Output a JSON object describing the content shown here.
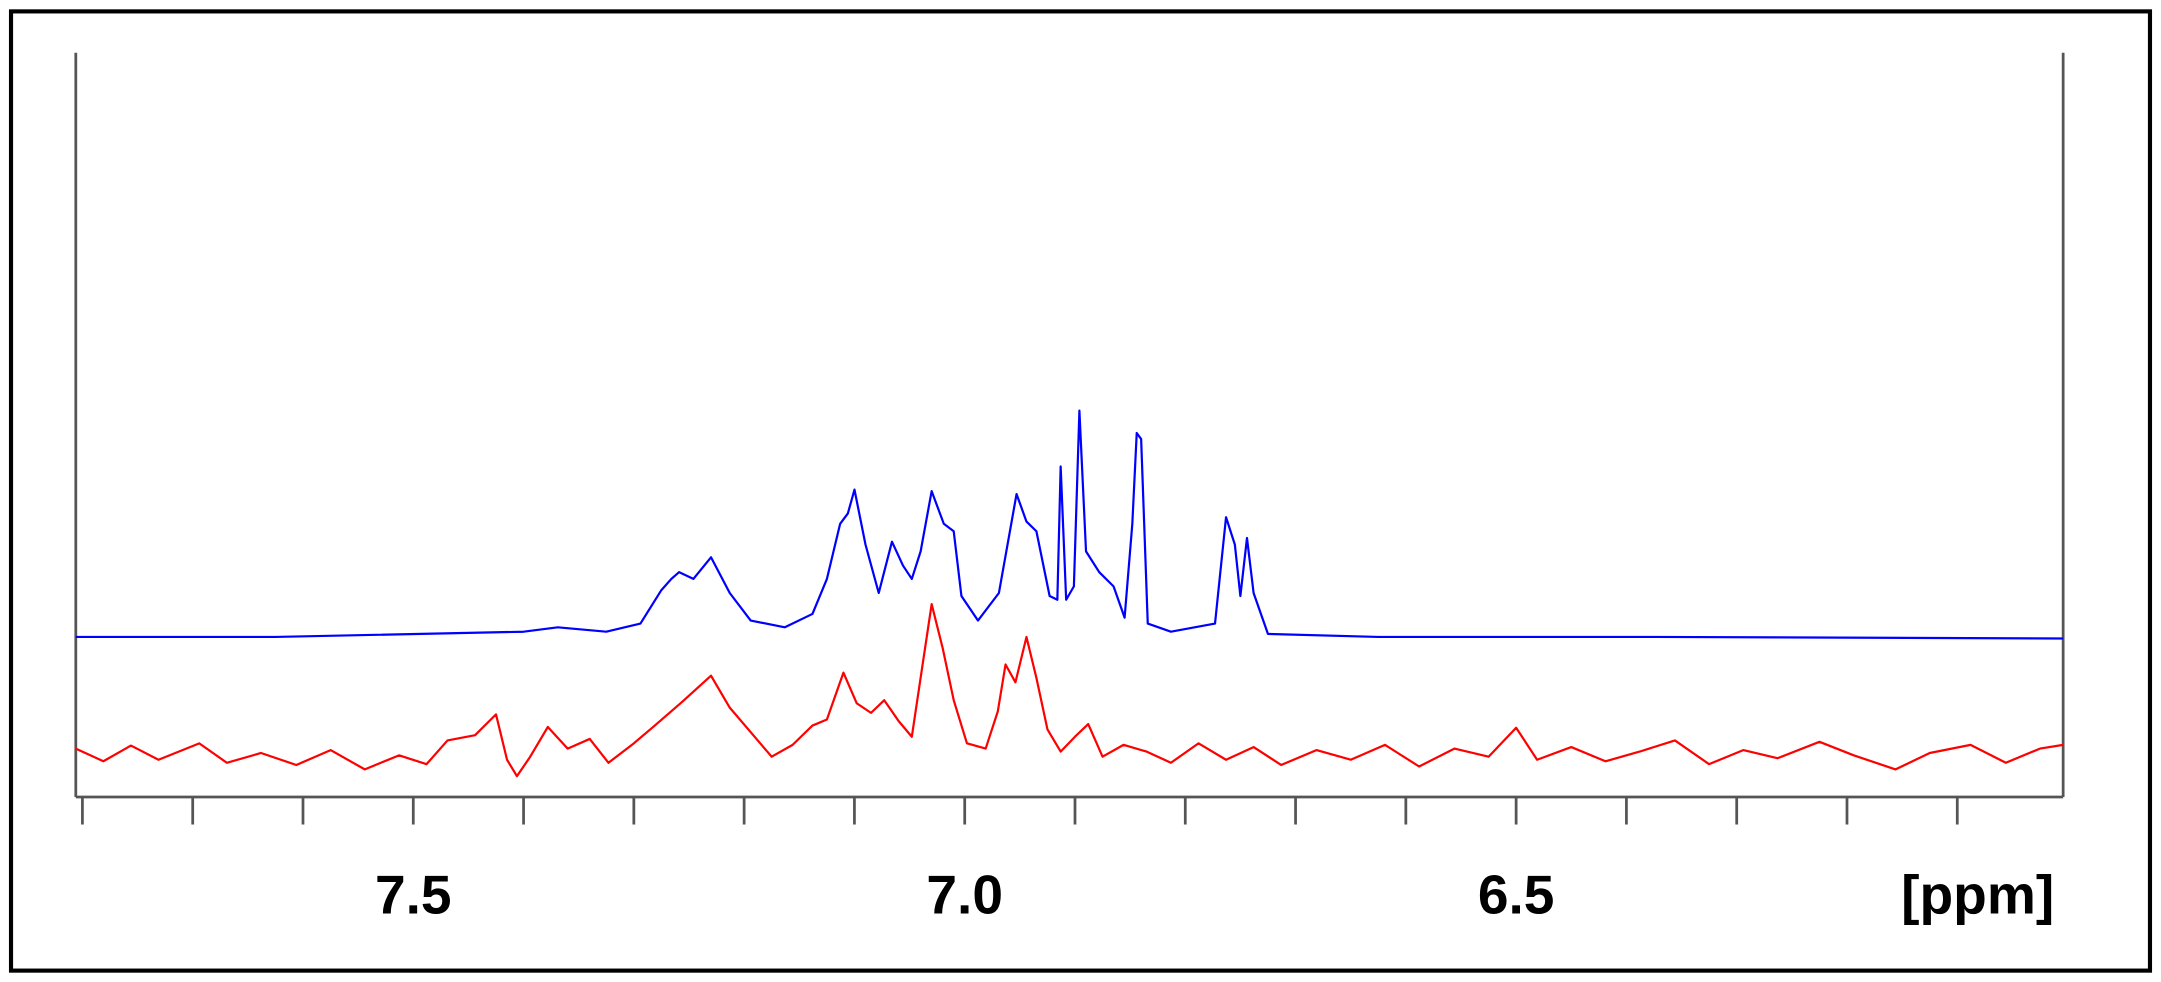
{
  "chart_data": {
    "type": "line",
    "x_label": "[ppm]",
    "xlim": [
      7.806,
      6.004
    ],
    "ylim": [
      0,
      100
    ],
    "xticks": [
      7.5,
      {
        "value": 7,
        "label": "7.0"
      },
      6.5
    ],
    "x_minor_ticks": [
      7.8,
      7.7,
      7.6,
      7.5,
      7.4,
      7.3,
      7.2,
      7.1,
      7.0,
      6.9,
      6.8,
      6.7,
      6.6,
      6.5,
      6.4,
      6.3,
      6.2,
      6.1
    ],
    "series": [
      {
        "color": "#0000ff",
        "x": [
          7.806,
          7.625,
          7.4,
          7.369,
          7.325,
          7.294,
          7.275,
          7.266,
          7.259,
          7.246,
          7.23,
          7.213,
          7.194,
          7.163,
          7.138,
          7.125,
          7.113,
          7.106,
          7.1,
          7.09,
          7.078,
          7.066,
          7.056,
          7.048,
          7.04,
          7.03,
          7.019,
          7.01,
          7.003,
          6.988,
          6.969,
          6.953,
          6.944,
          6.935,
          6.923,
          6.916,
          6.913,
          6.908,
          6.901,
          6.896,
          6.89,
          6.878,
          6.865,
          6.855,
          6.848,
          6.844,
          6.84,
          6.834,
          6.813,
          6.773,
          6.763,
          6.755,
          6.75,
          6.744,
          6.738,
          6.725,
          6.625,
          6.375,
          6.004
        ],
        "values": [
          21.5,
          21.5,
          22.2,
          22.8,
          22.2,
          23.3,
          27.8,
          29.3,
          30.2,
          29.3,
          32.2,
          27.4,
          23.7,
          22.8,
          24.6,
          29.3,
          36.7,
          38.1,
          41.3,
          33.9,
          27.4,
          34.3,
          31.1,
          29.3,
          33.0,
          41.1,
          36.7,
          35.7,
          27.0,
          23.7,
          27.4,
          40.7,
          37.0,
          35.7,
          27.0,
          26.5,
          44.4,
          26.5,
          28.3,
          51.9,
          33.0,
          30.2,
          28.3,
          24.1,
          36.7,
          48.9,
          48.1,
          23.3,
          22.2,
          23.3,
          37.6,
          33.9,
          27.0,
          34.8,
          27.4,
          21.9,
          21.5,
          21.5,
          21.3
        ]
      },
      {
        "color": "#ff0000",
        "x": [
          7.806,
          7.781,
          7.756,
          7.731,
          7.694,
          7.669,
          7.638,
          7.606,
          7.575,
          7.544,
          7.513,
          7.488,
          7.469,
          7.444,
          7.425,
          7.415,
          7.406,
          7.394,
          7.378,
          7.36,
          7.34,
          7.323,
          7.3,
          7.281,
          7.256,
          7.23,
          7.213,
          7.194,
          7.175,
          7.156,
          7.138,
          7.125,
          7.11,
          7.098,
          7.085,
          7.073,
          7.06,
          7.048,
          7.038,
          7.03,
          7.02,
          7.01,
          6.998,
          6.981,
          6.97,
          6.963,
          6.954,
          6.944,
          6.935,
          6.925,
          6.913,
          6.9,
          6.888,
          6.875,
          6.856,
          6.835,
          6.813,
          6.788,
          6.763,
          6.738,
          6.713,
          6.681,
          6.65,
          6.619,
          6.588,
          6.556,
          6.525,
          6.5,
          6.481,
          6.45,
          6.419,
          6.388,
          6.356,
          6.325,
          6.294,
          6.263,
          6.225,
          6.194,
          6.156,
          6.125,
          6.088,
          6.056,
          6.025,
          6.004
        ],
        "values": [
          6.5,
          4.8,
          6.9,
          5.0,
          7.2,
          4.6,
          5.9,
          4.3,
          6.3,
          3.7,
          5.6,
          4.4,
          7.6,
          8.3,
          11.1,
          5.0,
          2.8,
          5.4,
          9.4,
          6.5,
          7.8,
          4.6,
          7.2,
          9.6,
          12.8,
          16.3,
          12.0,
          8.7,
          5.4,
          7.0,
          9.6,
          10.4,
          16.7,
          12.6,
          11.3,
          13.0,
          10.2,
          8.1,
          18.0,
          25.9,
          20.0,
          13.0,
          7.2,
          6.5,
          11.5,
          17.8,
          15.4,
          21.5,
          16.0,
          9.1,
          6.1,
          8.1,
          9.8,
          5.4,
          7.0,
          6.1,
          4.6,
          7.2,
          5.0,
          6.7,
          4.3,
          6.3,
          5.0,
          7.0,
          4.1,
          6.5,
          5.4,
          9.3,
          5.0,
          6.7,
          4.8,
          6.1,
          7.6,
          4.4,
          6.3,
          5.2,
          7.4,
          5.6,
          3.7,
          5.9,
          7.0,
          4.6,
          6.5,
          7.0
        ]
      }
    ]
  }
}
